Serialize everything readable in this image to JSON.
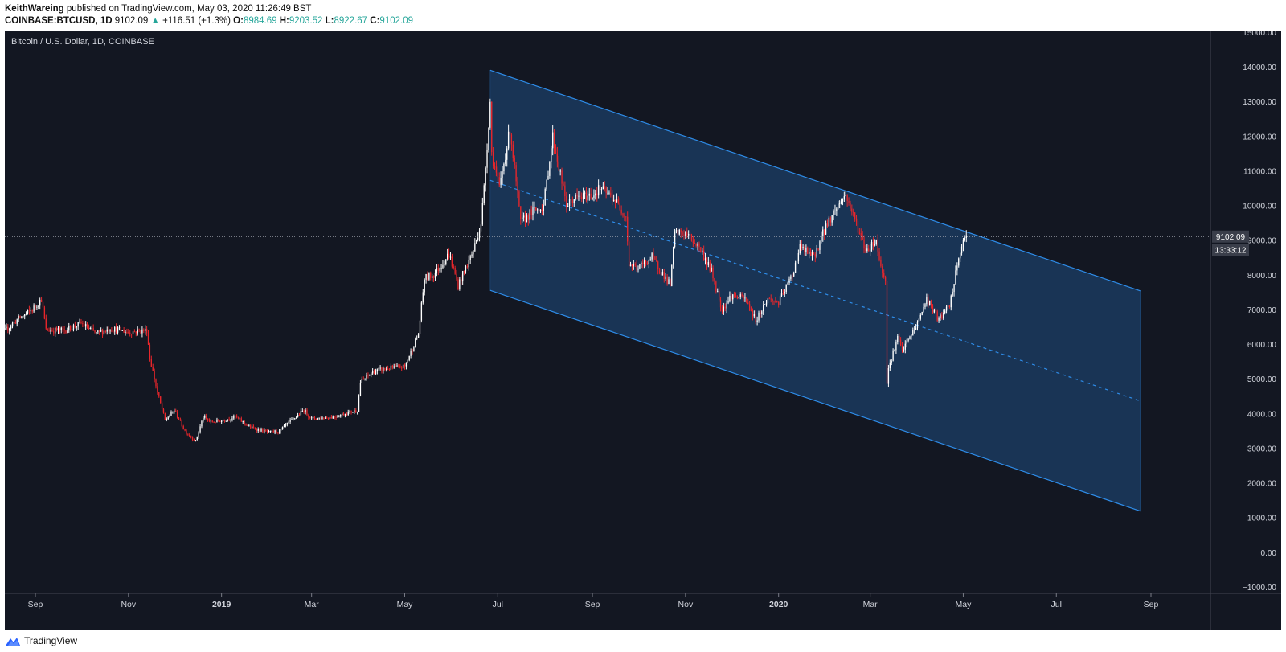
{
  "header": {
    "author": "KeithWareing",
    "published_text": " published on TradingView.com, May 03, 2020 11:26:49 BST",
    "symbol": "COINBASE:BTCUSD, 1D",
    "last": "9102.09",
    "change_arrow": "▲",
    "change": "+116.51 (+1.3%)",
    "o_label": "O:",
    "o_value": "8984.69",
    "h_label": "H:",
    "h_value": "9203.52",
    "l_label": "L:",
    "l_value": "8922.67",
    "c_label": "C:",
    "c_value": "9102.09"
  },
  "footer": {
    "brand": "TradingView"
  },
  "colors": {
    "background": "#131722",
    "up_candle": "#ffffff",
    "down_candle": "#e8262b",
    "channel_line": "#2e8ce8",
    "channel_fill": "#1b3a5e",
    "axis_text": "#d1d4dc",
    "price_label_bg": "#3a3e4a"
  },
  "chart_data": {
    "type": "candlestick",
    "title": "Bitcoin / U.S. Dollar, 1D, COINBASE",
    "xlabel": "",
    "ylabel": "",
    "ylim": [
      -1000,
      15000
    ],
    "xlim": [
      "2018-08-01",
      "2020-09-10"
    ],
    "x_ticks": [
      {
        "date": "2018-09-01",
        "label": "Sep"
      },
      {
        "date": "2018-11-01",
        "label": "Nov"
      },
      {
        "date": "2019-01-01",
        "label": "2019"
      },
      {
        "date": "2019-03-01",
        "label": "Mar"
      },
      {
        "date": "2019-05-01",
        "label": "May"
      },
      {
        "date": "2019-07-01",
        "label": "Jul"
      },
      {
        "date": "2019-09-01",
        "label": "Sep"
      },
      {
        "date": "2019-11-01",
        "label": "Nov"
      },
      {
        "date": "2020-01-01",
        "label": "2020"
      },
      {
        "date": "2020-03-01",
        "label": "Mar"
      },
      {
        "date": "2020-05-01",
        "label": "May"
      },
      {
        "date": "2020-07-01",
        "label": "Jul"
      },
      {
        "date": "2020-09-01",
        "label": "Sep"
      }
    ],
    "y_ticks": [
      "15000.00",
      "14000.00",
      "13000.00",
      "12000.00",
      "11000.00",
      "10000.00",
      "9000.00",
      "8000.00",
      "7000.00",
      "6000.00",
      "5000.00",
      "4000.00",
      "3000.00",
      "2000.00",
      "1000.00",
      "0.00",
      "−1000.00"
    ],
    "y_tick_values": [
      15000,
      14000,
      13000,
      12000,
      11000,
      10000,
      9000,
      8000,
      7000,
      6000,
      5000,
      4000,
      3000,
      2000,
      1000,
      0,
      -1000
    ],
    "price_path": [
      [
        "2018-08-01",
        6100
      ],
      [
        "2018-08-10",
        6300
      ],
      [
        "2018-08-20",
        6700
      ],
      [
        "2018-08-30",
        7000
      ],
      [
        "2018-09-05",
        7300
      ],
      [
        "2018-09-08",
        6400
      ],
      [
        "2018-09-20",
        6400
      ],
      [
        "2018-10-01",
        6600
      ],
      [
        "2018-10-11",
        6300
      ],
      [
        "2018-10-20",
        6450
      ],
      [
        "2018-11-01",
        6350
      ],
      [
        "2018-11-13",
        6400
      ],
      [
        "2018-11-15",
        5600
      ],
      [
        "2018-11-20",
        4600
      ],
      [
        "2018-11-25",
        3800
      ],
      [
        "2018-12-01",
        4100
      ],
      [
        "2018-12-08",
        3500
      ],
      [
        "2018-12-15",
        3200
      ],
      [
        "2018-12-20",
        3900
      ],
      [
        "2018-12-25",
        3750
      ],
      [
        "2019-01-01",
        3800
      ],
      [
        "2019-01-10",
        3900
      ],
      [
        "2019-01-20",
        3600
      ],
      [
        "2019-02-01",
        3450
      ],
      [
        "2019-02-08",
        3500
      ],
      [
        "2019-02-24",
        4100
      ],
      [
        "2019-03-01",
        3850
      ],
      [
        "2019-03-15",
        3900
      ],
      [
        "2019-03-31",
        4100
      ],
      [
        "2019-04-02",
        4900
      ],
      [
        "2019-04-10",
        5200
      ],
      [
        "2019-04-20",
        5300
      ],
      [
        "2019-05-01",
        5350
      ],
      [
        "2019-05-10",
        6300
      ],
      [
        "2019-05-14",
        7900
      ],
      [
        "2019-05-20",
        8000
      ],
      [
        "2019-05-30",
        8600
      ],
      [
        "2019-06-05",
        7700
      ],
      [
        "2019-06-15",
        8700
      ],
      [
        "2019-06-20",
        9500
      ],
      [
        "2019-06-22",
        10500
      ],
      [
        "2019-06-26",
        13000
      ],
      [
        "2019-06-27",
        11500
      ],
      [
        "2019-07-02",
        10500
      ],
      [
        "2019-07-09",
        12200
      ],
      [
        "2019-07-16",
        9500
      ],
      [
        "2019-07-23",
        9800
      ],
      [
        "2019-07-31",
        10000
      ],
      [
        "2019-08-06",
        12000
      ],
      [
        "2019-08-15",
        10000
      ],
      [
        "2019-08-20",
        10200
      ],
      [
        "2019-09-01",
        10300
      ],
      [
        "2019-09-06",
        10500
      ],
      [
        "2019-09-15",
        10200
      ],
      [
        "2019-09-23",
        9700
      ],
      [
        "2019-09-25",
        8300
      ],
      [
        "2019-10-01",
        8200
      ],
      [
        "2019-10-10",
        8500
      ],
      [
        "2019-10-22",
        7700
      ],
      [
        "2019-10-25",
        9200
      ],
      [
        "2019-11-01",
        9200
      ],
      [
        "2019-11-10",
        8800
      ],
      [
        "2019-11-18",
        8100
      ],
      [
        "2019-11-25",
        7000
      ],
      [
        "2019-12-01",
        7400
      ],
      [
        "2019-12-10",
        7300
      ],
      [
        "2019-12-17",
        6700
      ],
      [
        "2019-12-25",
        7300
      ],
      [
        "2020-01-01",
        7200
      ],
      [
        "2020-01-10",
        8000
      ],
      [
        "2020-01-15",
        8800
      ],
      [
        "2020-01-24",
        8500
      ],
      [
        "2020-02-01",
        9400
      ],
      [
        "2020-02-10",
        10100
      ],
      [
        "2020-02-14",
        10300
      ],
      [
        "2020-02-20",
        9600
      ],
      [
        "2020-02-27",
        8700
      ],
      [
        "2020-03-05",
        9000
      ],
      [
        "2020-03-08",
        8200
      ],
      [
        "2020-03-11",
        7900
      ],
      [
        "2020-03-12",
        4900
      ],
      [
        "2020-03-13",
        5300
      ],
      [
        "2020-03-19",
        6200
      ],
      [
        "2020-03-22",
        5800
      ],
      [
        "2020-04-01",
        6600
      ],
      [
        "2020-04-07",
        7300
      ],
      [
        "2020-04-15",
        6700
      ],
      [
        "2020-04-22",
        7100
      ],
      [
        "2020-04-29",
        8700
      ],
      [
        "2020-05-01",
        8900
      ],
      [
        "2020-05-03",
        9102
      ]
    ],
    "channel": {
      "upper": [
        [
          "2019-06-26",
          13900
        ],
        [
          "2020-05-19",
          9000
        ]
      ],
      "lower": [
        [
          "2019-06-26",
          7550
        ],
        [
          "2020-03-13",
          3850
        ]
      ],
      "end_date": "2020-08-25"
    },
    "current_price": {
      "value": 9102.09,
      "label": "9102.09",
      "countdown": "13:33:12"
    }
  }
}
